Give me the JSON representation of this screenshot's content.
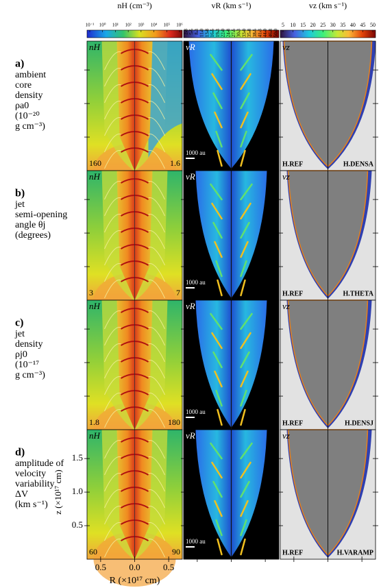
{
  "colorbars": [
    {
      "label": "nH (cm⁻³)",
      "ticks": [
        "10⁻¹",
        "10⁰",
        "10¹",
        "10²",
        "10³",
        "10⁴",
        "10⁵",
        "10⁶"
      ]
    },
    {
      "label": "vR (km s⁻¹)",
      "ticks": [
        "2.8",
        "5.5",
        "8.3",
        "11.0",
        "13.8",
        "16.5",
        "19.3",
        "22.0",
        "24.8",
        "27.5",
        "30.3",
        "33.0",
        "35.8",
        "38.5",
        "41.3",
        "44.0",
        "46.8",
        "50.0"
      ]
    },
    {
      "label": "vz (km s⁻¹)",
      "ticks": [
        "5",
        "10",
        "15",
        "20",
        "25",
        "30",
        "35",
        "40",
        "45",
        "50"
      ]
    }
  ],
  "panel_symbols": [
    "nH",
    "vR",
    "vz"
  ],
  "rows": [
    {
      "letter": "a)",
      "lines": [
        "ambient",
        "core",
        "density",
        "ρa0",
        "(10⁻²⁰",
        "g cm⁻³)"
      ],
      "low": "160",
      "high": "1.6",
      "scale": "1000 au",
      "ref": "H.REF",
      "model": "H.DENSA"
    },
    {
      "letter": "b)",
      "lines": [
        "jet",
        "semi-opening",
        "angle θj",
        "(degrees)"
      ],
      "low": "3",
      "high": "7",
      "scale": "1000 au",
      "ref": "H.REF",
      "model": "H.THETA"
    },
    {
      "letter": "c)",
      "lines": [
        "jet",
        "density",
        "ρj0",
        "(10⁻¹⁷",
        "g cm⁻³)"
      ],
      "low": "1.8",
      "high": "180",
      "scale": "1000 au",
      "ref": "H.REF",
      "model": "H.DENSJ"
    },
    {
      "letter": "d)",
      "lines": [
        "amplitude of",
        "velocity",
        "variability",
        "ΔV",
        "(km s⁻¹)"
      ],
      "low": "60",
      "high": "90",
      "scale": "1000 au",
      "ref": "H.REF",
      "model": "H.VARAMP"
    }
  ],
  "y_axis": {
    "label": "z (×10¹⁷ cm)",
    "range": [
      0,
      1.93
    ],
    "ticks": [
      {
        "value": 0.5,
        "label": "0.5"
      },
      {
        "value": 1.0,
        "label": "1.0"
      },
      {
        "value": 1.5,
        "label": "1.5"
      }
    ]
  },
  "x_axis": {
    "label": "R (×10¹⁷ cm)",
    "range": [
      -0.7,
      0.7
    ],
    "ticks": [
      {
        "value": -0.5,
        "label": "0.5"
      },
      {
        "value": 0,
        "label": "0.0"
      },
      {
        "value": 0.5,
        "label": "0.5"
      }
    ]
  }
}
